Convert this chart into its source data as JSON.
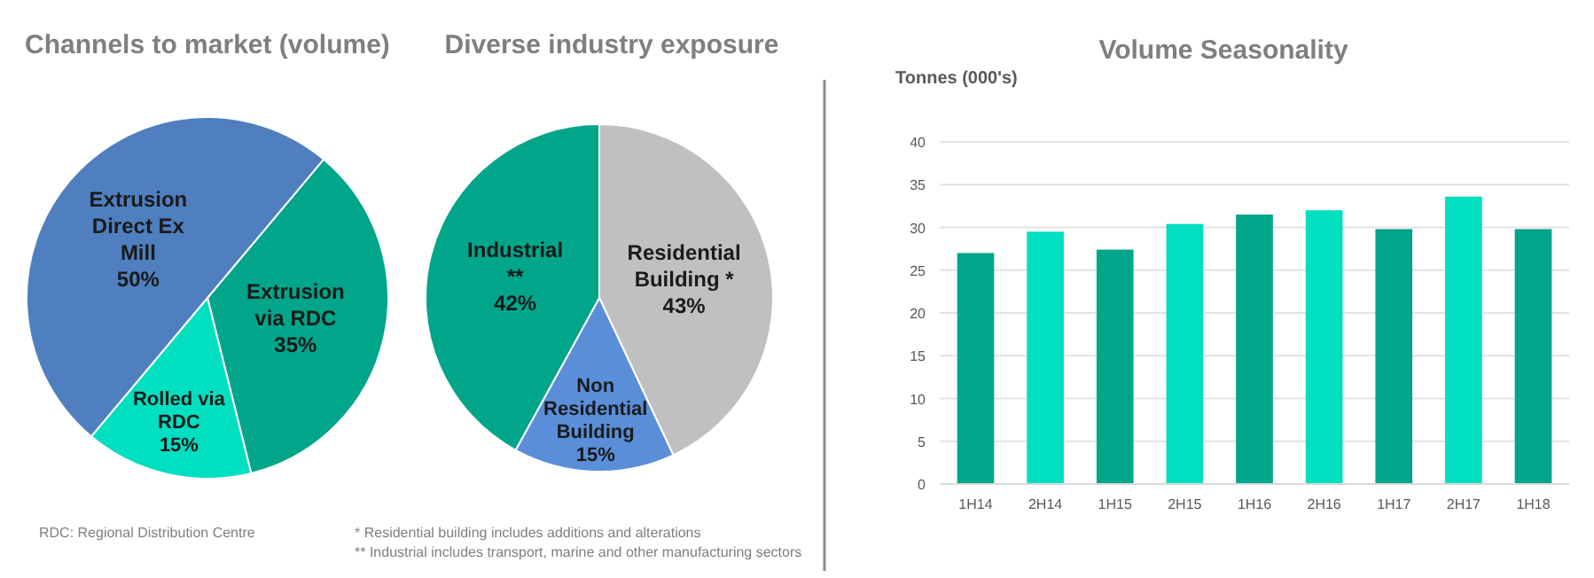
{
  "chart_data": [
    {
      "type": "pie",
      "title": "Channels to market (volume)",
      "categories": [
        "Extrusion via RDC",
        "Rolled via RDC",
        "Extrusion Direct Ex Mill"
      ],
      "values": [
        35,
        15,
        50
      ],
      "value_labels": [
        "35%",
        "15%",
        "50%"
      ],
      "colors": [
        "#00a58a",
        "#00dfc0",
        "#4f7fbf"
      ],
      "annotations": [
        "RDC: Regional Distribution Centre"
      ]
    },
    {
      "type": "pie",
      "title": "Diverse industry exposure",
      "categories": [
        "Residential Building *",
        "Non Residential Building",
        "Industrial **"
      ],
      "values": [
        43,
        15,
        42
      ],
      "value_labels": [
        "43%",
        "15%",
        "42%"
      ],
      "colors": [
        "#c0c0c0",
        "#5a8ed8",
        "#00a58a"
      ],
      "annotations": [
        "*   Residential building includes additions and alterations",
        "** Industrial includes transport, marine and other manufacturing sectors"
      ]
    },
    {
      "type": "bar",
      "title": "Volume Seasonality",
      "ylabel": "Tonnes (000's)",
      "categories": [
        "1H14",
        "2H14",
        "1H15",
        "2H15",
        "1H16",
        "2H16",
        "1H17",
        "2H17",
        "1H18"
      ],
      "values": [
        27,
        29.5,
        27.4,
        30.4,
        31.5,
        32,
        29.8,
        33.6,
        29.8
      ],
      "colors": [
        "#00a58a",
        "#00dfc0",
        "#00a58a",
        "#00dfc0",
        "#00a58a",
        "#00dfc0",
        "#00a58a",
        "#00dfc0",
        "#00a58a"
      ],
      "ylim": [
        0,
        40
      ],
      "yticks": [
        0,
        5,
        10,
        15,
        20,
        25,
        30,
        35,
        40
      ],
      "grid": "y"
    }
  ]
}
